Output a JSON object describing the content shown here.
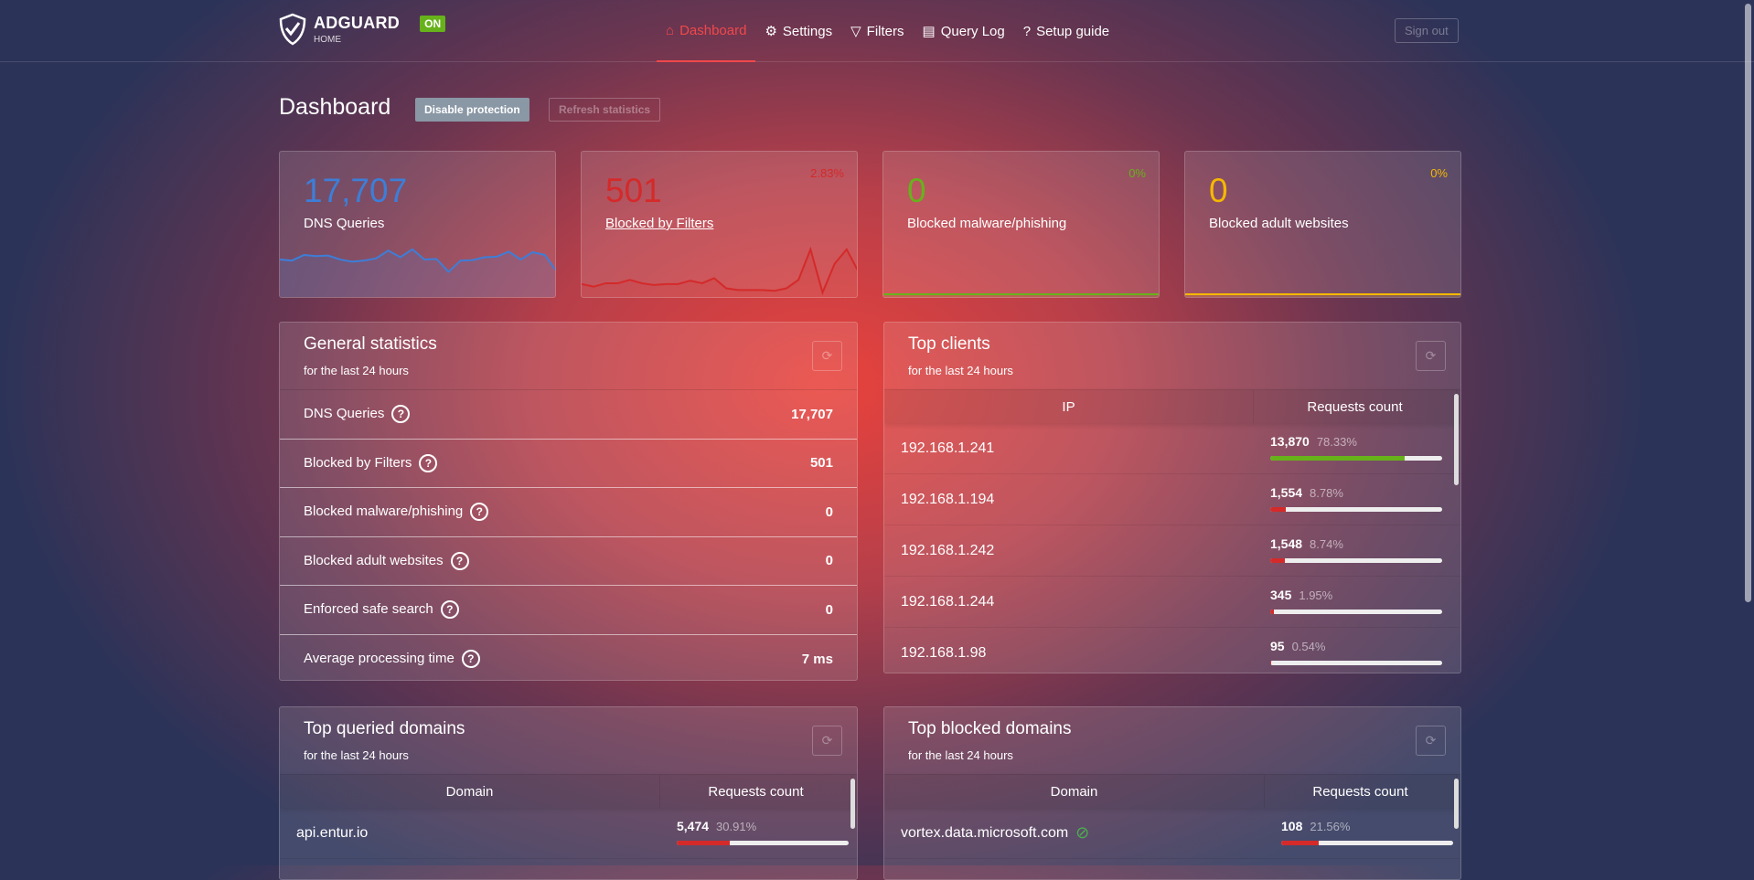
{
  "header": {
    "brand": "ADGUARD",
    "brand_sub": "HOME",
    "status_badge": "ON",
    "nav": [
      {
        "label": "Dashboard",
        "icon": "home-icon",
        "active": true
      },
      {
        "label": "Settings",
        "icon": "gear-icon"
      },
      {
        "label": "Filters",
        "icon": "filter-icon"
      },
      {
        "label": "Query Log",
        "icon": "document-icon"
      },
      {
        "label": "Setup guide",
        "icon": "help-icon"
      }
    ],
    "sign_out": "Sign out"
  },
  "page": {
    "title": "Dashboard",
    "disable_protection": "Disable protection",
    "refresh_statistics": "Refresh statistics"
  },
  "stat_cards": [
    {
      "value": "17,707",
      "label": "DNS Queries",
      "percent": "",
      "color": "#3d7ed8",
      "sparkline": [
        62,
        60,
        70,
        68,
        69,
        62,
        58,
        60,
        64,
        78,
        66,
        80,
        62,
        63,
        40,
        60,
        61,
        66,
        67,
        76,
        62,
        75,
        70,
        40
      ]
    },
    {
      "value": "501",
      "label": "Blocked by Filters",
      "percent": "2.83%",
      "color": "#d42a2a",
      "sparkline": [
        12,
        9,
        13,
        13,
        17,
        13,
        11,
        12,
        12,
        16,
        13,
        19,
        7,
        5,
        5,
        5,
        4,
        7,
        17,
        53,
        2,
        36,
        53,
        26
      ]
    },
    {
      "value": "0",
      "label": "Blocked malware/phishing",
      "percent": "0%",
      "color": "#67b21b",
      "sparkline": [
        0,
        0,
        0,
        0,
        0,
        0,
        0,
        0,
        0,
        0,
        0,
        0,
        0,
        0,
        0,
        0,
        0,
        0,
        0,
        0,
        0,
        0,
        0,
        0
      ]
    },
    {
      "value": "0",
      "label": "Blocked adult websites",
      "percent": "0%",
      "color": "#f5b800",
      "sparkline": [
        0,
        0,
        0,
        0,
        0,
        0,
        0,
        0,
        0,
        0,
        0,
        0,
        0,
        0,
        0,
        0,
        0,
        0,
        0,
        0,
        0,
        0,
        0,
        0
      ]
    }
  ],
  "general": {
    "title": "General statistics",
    "subtitle": "for the last 24 hours",
    "rows": [
      {
        "label": "DNS Queries",
        "value": "17,707"
      },
      {
        "label": "Blocked by Filters",
        "value": "501"
      },
      {
        "label": "Blocked malware/phishing",
        "value": "0"
      },
      {
        "label": "Blocked adult websites",
        "value": "0"
      },
      {
        "label": "Enforced safe search",
        "value": "0"
      },
      {
        "label": "Average processing time",
        "value": "7 ms"
      }
    ]
  },
  "clients": {
    "title": "Top clients",
    "subtitle": "for the last 24 hours",
    "col1": "IP",
    "col2": "Requests count",
    "rows": [
      {
        "ip": "192.168.1.241",
        "count": "13,870",
        "percent": "78.33%",
        "pct": 78.33,
        "color": "#67b21b"
      },
      {
        "ip": "192.168.1.194",
        "count": "1,554",
        "percent": "8.78%",
        "pct": 8.78,
        "color": "#d42a2a"
      },
      {
        "ip": "192.168.1.242",
        "count": "1,548",
        "percent": "8.74%",
        "pct": 8.74,
        "color": "#d42a2a"
      },
      {
        "ip": "192.168.1.244",
        "count": "345",
        "percent": "1.95%",
        "pct": 1.95,
        "color": "#d42a2a"
      },
      {
        "ip": "192.168.1.98",
        "count": "95",
        "percent": "0.54%",
        "pct": 0.54,
        "color": "#d42a2a"
      }
    ]
  },
  "queried": {
    "title": "Top queried domains",
    "subtitle": "for the last 24 hours",
    "col1": "Domain",
    "col2": "Requests count",
    "rows": [
      {
        "domain": "api.entur.io",
        "count": "5,474",
        "percent": "30.91%",
        "pct": 30.91,
        "color": "#d42a2a"
      }
    ]
  },
  "blocked": {
    "title": "Top blocked domains",
    "subtitle": "for the last 24 hours",
    "col1": "Domain",
    "col2": "Requests count",
    "rows": [
      {
        "domain": "vortex.data.microsoft.com",
        "count": "108",
        "percent": "21.56%",
        "pct": 21.56,
        "color": "#d42a2a",
        "icon": "tracker-icon"
      }
    ]
  }
}
